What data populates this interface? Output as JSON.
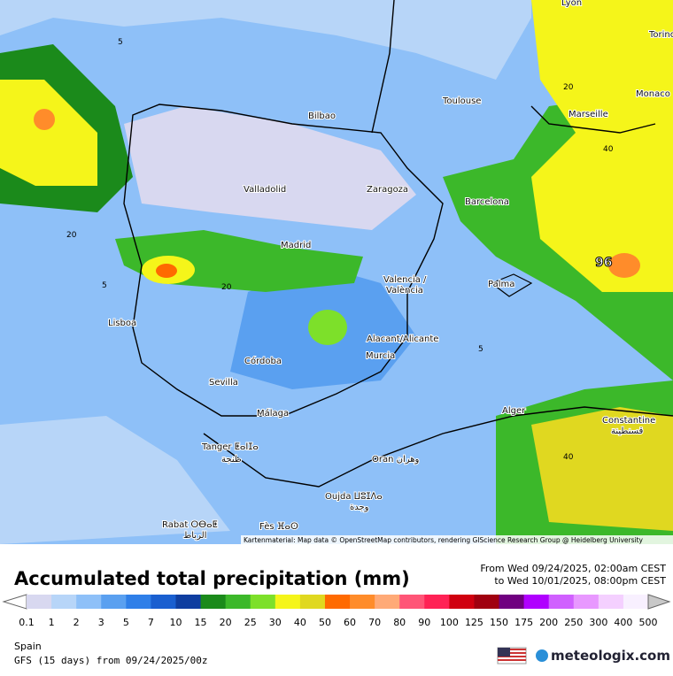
{
  "map": {
    "cities": [
      "Lyon",
      "Torino",
      "Monaco",
      "Marseille",
      "Toulouse",
      "Bilbao",
      "Valladolid",
      "Zaragoza",
      "Barcelona",
      "Madrid",
      "Palma",
      "Valencia /",
      "València",
      "Lisboa",
      "Alacant/Alicante",
      "Murcia",
      "Córdoba",
      "Sevilla",
      "Málaga",
      "Alger",
      "Constantine",
      "قسنطينة",
      "Tanger ⵟⴰⵏⵊⴰ",
      "طنجة",
      "Oran وهران",
      "Oujda ⵡⵓⵊⴷⴰ",
      "وجدة",
      "Rabat ⵔⴱⴰⵟ",
      "الرباط",
      "Fès ⴼⴰⵙ"
    ],
    "contour_labels": [
      "5",
      "20",
      "40",
      "96"
    ],
    "attribution": "Kartenmaterial: Map data © OpenStreetMap contributors, rendering GIScience Research Group @ Heidelberg University"
  },
  "legend": {
    "title": "Accumulated total precipitation (mm)",
    "from": "From Wed 09/24/2025, 02:00am CEST",
    "to": "to Wed 10/01/2025, 08:00pm CEST",
    "labels": [
      "0.1",
      "1",
      "2",
      "3",
      "5",
      "7",
      "10",
      "15",
      "20",
      "25",
      "30",
      "40",
      "50",
      "60",
      "70",
      "80",
      "90",
      "100",
      "125",
      "150",
      "175",
      "200",
      "250",
      "300",
      "400",
      "500"
    ],
    "below_color": "#ffffff",
    "above_color": "#c8c8c8",
    "colors": [
      "#d8d8f0",
      "#b7d5f8",
      "#8ec0f8",
      "#5aa0f0",
      "#2f7fe8",
      "#1a5fd0",
      "#0f3ea0",
      "#1b8a1b",
      "#3cb82a",
      "#7de02a",
      "#f5f51a",
      "#e0d820",
      "#ff6a00",
      "#ff8c2a",
      "#ffaa77",
      "#ff5577",
      "#ff2255",
      "#d00010",
      "#a00010",
      "#700080",
      "#b000ff",
      "#d060ff",
      "#e898ff",
      "#f4d0ff",
      "#f8f0ff"
    ]
  },
  "footer": {
    "region": "Spain",
    "model": "GFS (15 days) from  09/24/2025/00z",
    "brand": "meteologix.com"
  }
}
